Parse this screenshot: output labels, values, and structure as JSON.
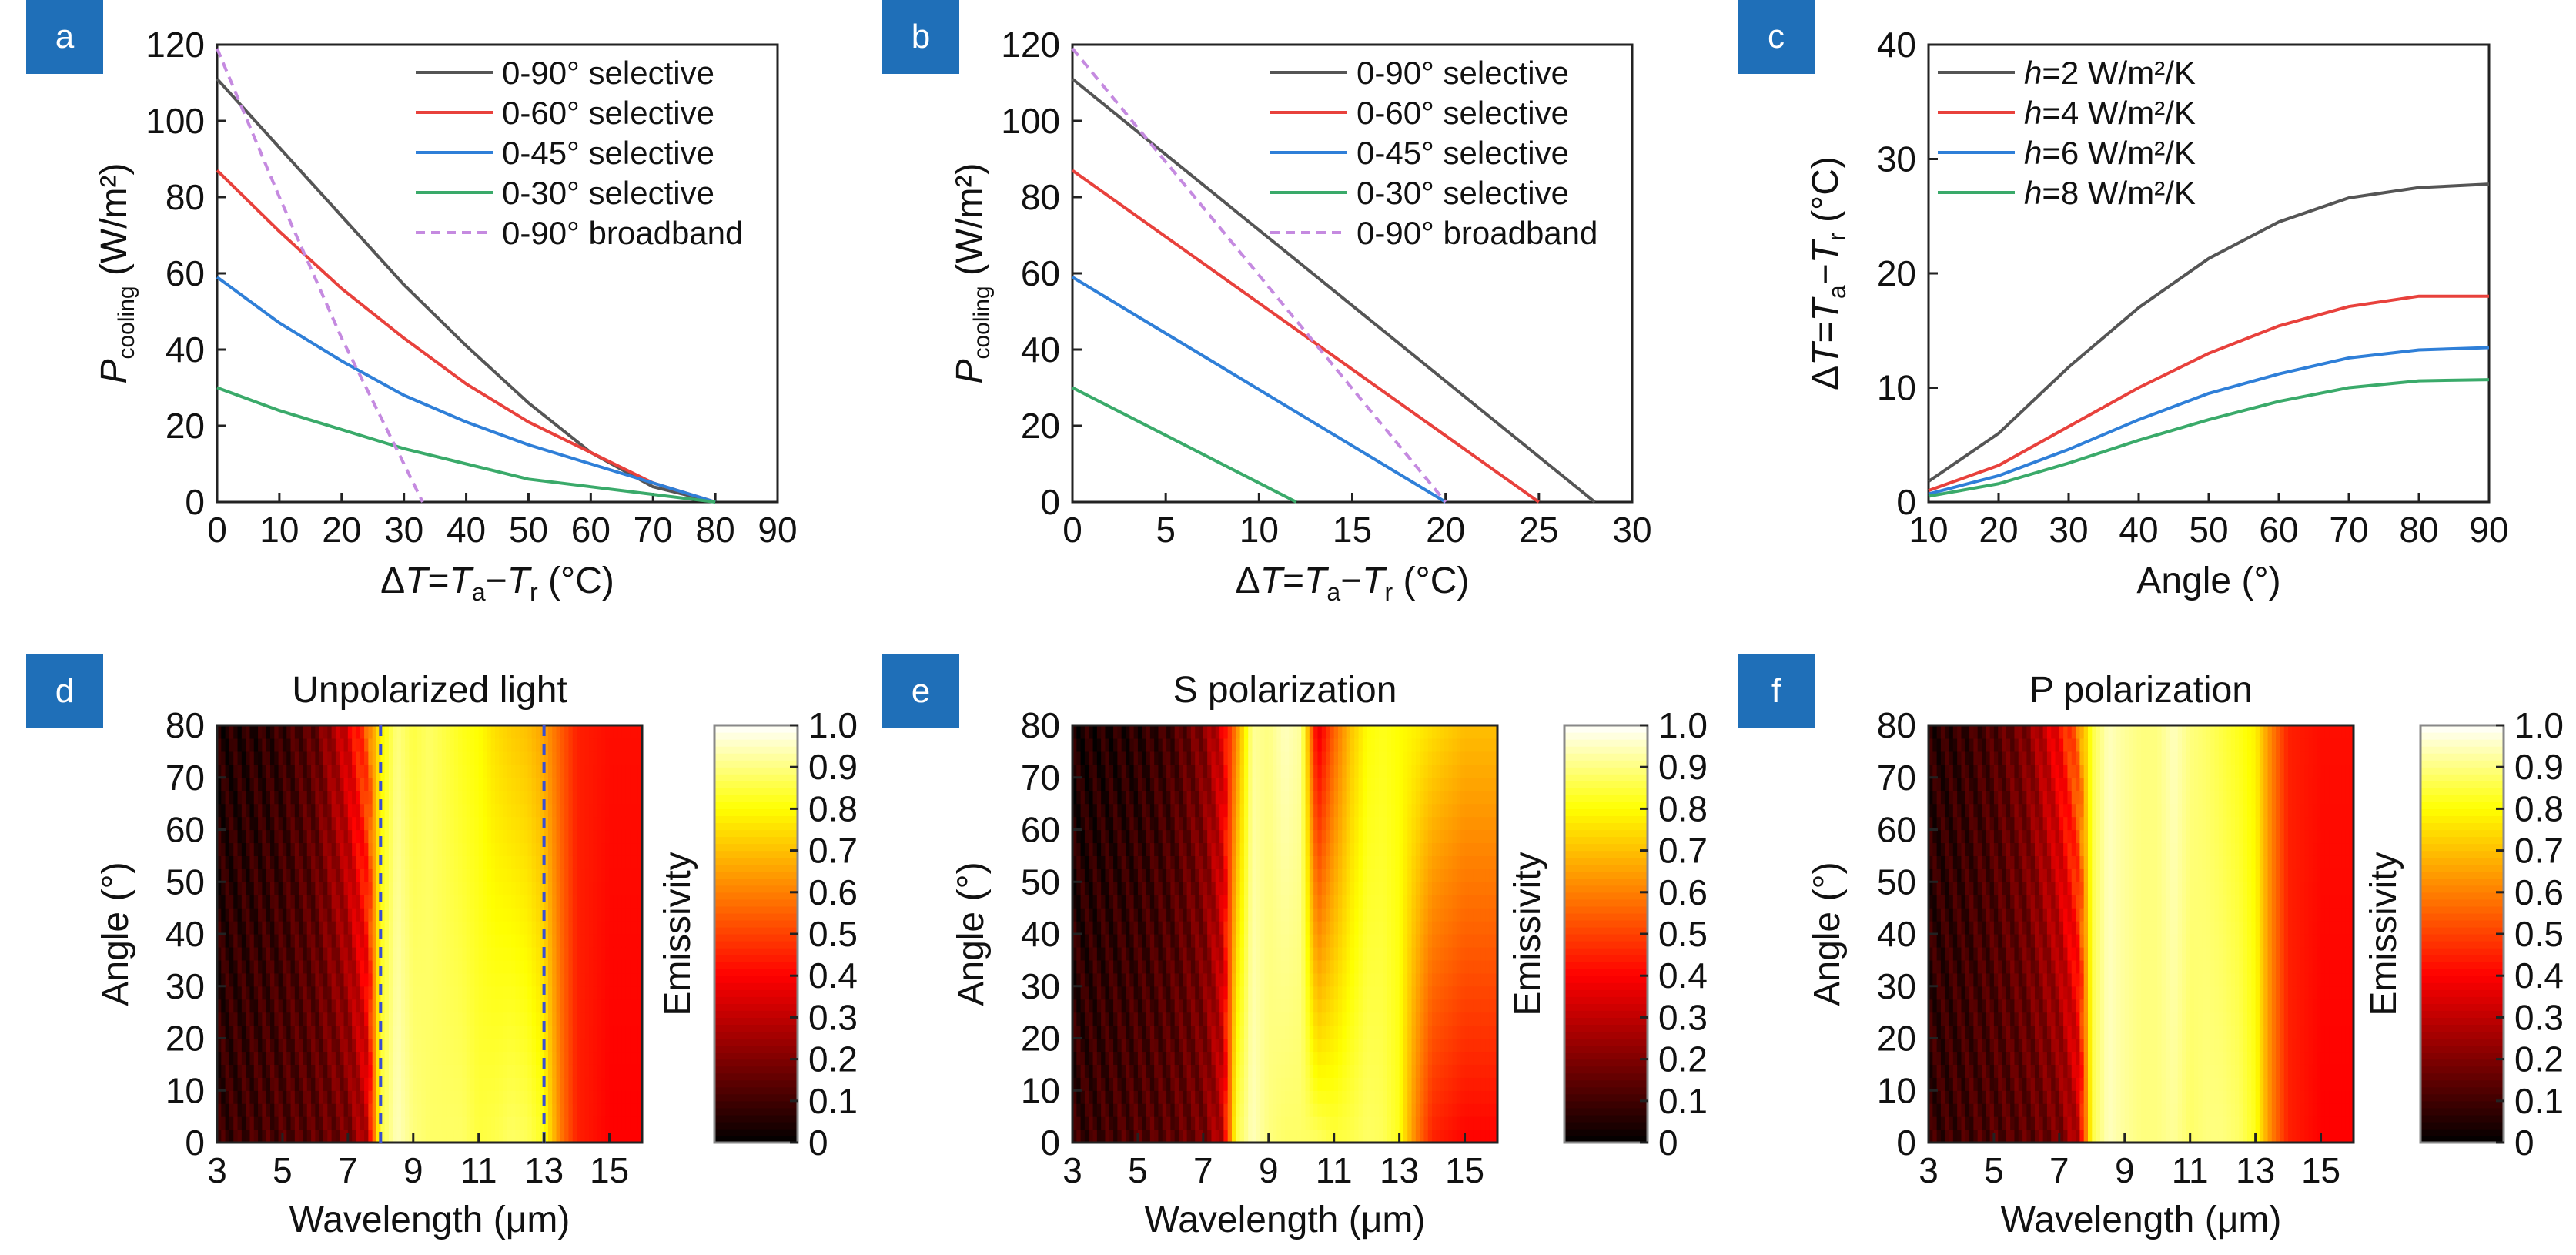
{
  "figure": {
    "panels": [
      {
        "id": "a",
        "label": "a",
        "ylabel_var": "P",
        "ylabel_sub": "cooling",
        "ylabel_unit": " (W/m²)",
        "xlabel": "ΔT=Ta−Tr (°C)"
      },
      {
        "id": "b",
        "label": "b",
        "ylabel_var": "P",
        "ylabel_sub": "cooling",
        "ylabel_unit": " (W/m²)",
        "xlabel": "ΔT=Ta−Tr (°C)"
      },
      {
        "id": "c",
        "label": "c",
        "ylabel": "ΔT=Ta−Tr (°C)",
        "xlabel": "Angle (°)"
      },
      {
        "id": "d",
        "label": "d",
        "title": "Unpolarized light",
        "ylabel": "Angle (°)",
        "xlabel": "Wavelength (μm)",
        "cbar_label": "Emissivity"
      },
      {
        "id": "e",
        "label": "e",
        "title": "S polarization",
        "ylabel": "Angle (°)",
        "xlabel": "Wavelength (μm)",
        "cbar_label": "Emissivity"
      },
      {
        "id": "f",
        "label": "f",
        "title": "P polarization",
        "ylabel": "Angle (°)",
        "xlabel": "Wavelength (μm)",
        "cbar_label": "Emissivity"
      }
    ],
    "colors": {
      "badge": "#1f6fb8",
      "gray": "#555555",
      "red": "#e8413c",
      "blue": "#2f7fd8",
      "green": "#3aaa6a",
      "purple": "#c58ae0"
    }
  },
  "chart_data": [
    {
      "type": "line",
      "panel": "a",
      "xlabel": "ΔT=Ta−Tr (°C)",
      "ylabel": "Pcooling (W/m²)",
      "xlim": [
        0,
        90
      ],
      "ylim": [
        0,
        120
      ],
      "xticks": [
        0,
        10,
        20,
        30,
        40,
        50,
        60,
        70,
        80,
        90
      ],
      "yticks": [
        0,
        20,
        40,
        60,
        80,
        100,
        120
      ],
      "legend_position": "top-right",
      "series": [
        {
          "name": "0-90° selective",
          "color": "#555555",
          "dash": false,
          "x": [
            0,
            10,
            20,
            30,
            40,
            50,
            60,
            70,
            80
          ],
          "y": [
            111,
            93,
            75,
            57,
            41,
            26,
            13,
            4,
            0
          ]
        },
        {
          "name": "0-60° selective",
          "color": "#e8413c",
          "dash": false,
          "x": [
            0,
            10,
            20,
            30,
            40,
            50,
            60,
            70,
            80
          ],
          "y": [
            87,
            71,
            56,
            43,
            31,
            21,
            13,
            5,
            0
          ]
        },
        {
          "name": "0-45° selective",
          "color": "#2f7fd8",
          "dash": false,
          "x": [
            0,
            10,
            20,
            30,
            40,
            50,
            60,
            70,
            80
          ],
          "y": [
            59,
            47,
            37,
            28,
            21,
            15,
            10,
            5,
            0
          ]
        },
        {
          "name": "0-30° selective",
          "color": "#3aaa6a",
          "dash": false,
          "x": [
            0,
            10,
            20,
            30,
            40,
            50,
            60,
            70,
            80
          ],
          "y": [
            30,
            24,
            19,
            14,
            10,
            6,
            4,
            2,
            0
          ]
        },
        {
          "name": "0-90° broadband",
          "color": "#c58ae0",
          "dash": true,
          "x": [
            0,
            10,
            20,
            30,
            33
          ],
          "y": [
            119,
            80,
            43,
            10,
            0
          ]
        }
      ]
    },
    {
      "type": "line",
      "panel": "b",
      "xlabel": "ΔT=Ta−Tr (°C)",
      "ylabel": "Pcooling (W/m²)",
      "xlim": [
        0,
        30
      ],
      "ylim": [
        0,
        120
      ],
      "xticks": [
        0,
        5,
        10,
        15,
        20,
        25,
        30
      ],
      "yticks": [
        0,
        20,
        40,
        60,
        80,
        100,
        120
      ],
      "legend_position": "top-right",
      "series": [
        {
          "name": "0-90° selective",
          "color": "#555555",
          "dash": false,
          "x": [
            0,
            28
          ],
          "y": [
            111,
            0
          ]
        },
        {
          "name": "0-60° selective",
          "color": "#e8413c",
          "dash": false,
          "x": [
            0,
            25
          ],
          "y": [
            87,
            0
          ]
        },
        {
          "name": "0-45° selective",
          "color": "#2f7fd8",
          "dash": false,
          "x": [
            0,
            20
          ],
          "y": [
            59,
            0
          ]
        },
        {
          "name": "0-30° selective",
          "color": "#3aaa6a",
          "dash": false,
          "x": [
            0,
            12
          ],
          "y": [
            30,
            0
          ]
        },
        {
          "name": "0-90° broadband",
          "color": "#c58ae0",
          "dash": true,
          "x": [
            0,
            20
          ],
          "y": [
            119,
            0
          ]
        }
      ]
    },
    {
      "type": "line",
      "panel": "c",
      "xlabel": "Angle (°)",
      "ylabel": "ΔT=Ta−Tr (°C)",
      "xlim": [
        10,
        90
      ],
      "ylim": [
        0,
        40
      ],
      "xticks": [
        10,
        20,
        30,
        40,
        50,
        60,
        70,
        80,
        90
      ],
      "yticks": [
        0,
        10,
        20,
        30,
        40
      ],
      "legend_position": "top-left",
      "series": [
        {
          "name": "h=2 W/m²/K",
          "legend_var": "h",
          "legend_rest": "=2 W/m²/K",
          "color": "#555555",
          "dash": false,
          "x": [
            10,
            20,
            30,
            40,
            50,
            60,
            70,
            80,
            90
          ],
          "y": [
            1.8,
            6,
            11.8,
            17,
            21.3,
            24.5,
            26.6,
            27.5,
            27.8
          ]
        },
        {
          "name": "h=4 W/m²/K",
          "legend_var": "h",
          "legend_rest": "=4 W/m²/K",
          "color": "#e8413c",
          "dash": false,
          "x": [
            10,
            20,
            30,
            40,
            50,
            60,
            70,
            80,
            90
          ],
          "y": [
            1,
            3.2,
            6.6,
            10,
            13,
            15.4,
            17.1,
            18,
            18
          ]
        },
        {
          "name": "h=6 W/m²/K",
          "legend_var": "h",
          "legend_rest": "=6 W/m²/K",
          "color": "#2f7fd8",
          "dash": false,
          "x": [
            10,
            20,
            30,
            40,
            50,
            60,
            70,
            80,
            90
          ],
          "y": [
            0.7,
            2.3,
            4.6,
            7.2,
            9.5,
            11.2,
            12.6,
            13.3,
            13.5
          ]
        },
        {
          "name": "h=8 W/m²/K",
          "legend_var": "h",
          "legend_rest": "=8 W/m²/K",
          "color": "#3aaa6a",
          "dash": false,
          "x": [
            10,
            20,
            30,
            40,
            50,
            60,
            70,
            80,
            90
          ],
          "y": [
            0.5,
            1.6,
            3.4,
            5.4,
            7.2,
            8.8,
            10,
            10.6,
            10.7
          ]
        }
      ]
    },
    {
      "type": "heatmap",
      "panel": "d",
      "title": "Unpolarized light",
      "xlabel": "Wavelength (μm)",
      "ylabel": "Angle (°)",
      "colorbar_label": "Emissivity",
      "xlim": [
        3,
        16
      ],
      "ylim": [
        0,
        80
      ],
      "xticks": [
        3,
        5,
        7,
        9,
        11,
        13,
        15
      ],
      "yticks": [
        0,
        10,
        20,
        30,
        40,
        50,
        60,
        70,
        80
      ],
      "colorbar_ticks": [
        "0",
        "0.1",
        "0.2",
        "0.3",
        "0.4",
        "0.5",
        "0.6",
        "0.7",
        "0.8",
        "0.9",
        "1.0"
      ],
      "colorbar_range": [
        0,
        1
      ],
      "dashed_lines_x": [
        8,
        13
      ],
      "wavelength": [
        3,
        4,
        5,
        6,
        7,
        7.6,
        8,
        8.5,
        9,
        9.5,
        10,
        10.5,
        11,
        11.5,
        12,
        12.5,
        13,
        13.5,
        14,
        15,
        16
      ],
      "emissivity_angle0": [
        0.08,
        0.1,
        0.12,
        0.14,
        0.18,
        0.3,
        0.85,
        0.95,
        0.9,
        0.88,
        0.88,
        0.88,
        0.85,
        0.86,
        0.88,
        0.87,
        0.82,
        0.6,
        0.45,
        0.4,
        0.4
      ],
      "emissivity_angle80": [
        0.05,
        0.06,
        0.08,
        0.15,
        0.35,
        0.55,
        0.78,
        0.9,
        0.85,
        0.88,
        0.85,
        0.82,
        0.8,
        0.75,
        0.72,
        0.7,
        0.65,
        0.55,
        0.45,
        0.42,
        0.42
      ]
    },
    {
      "type": "heatmap",
      "panel": "e",
      "title": "S polarization",
      "xlabel": "Wavelength (μm)",
      "ylabel": "Angle (°)",
      "colorbar_label": "Emissivity",
      "xlim": [
        3,
        16
      ],
      "ylim": [
        0,
        80
      ],
      "xticks": [
        3,
        5,
        7,
        9,
        11,
        13,
        15
      ],
      "yticks": [
        0,
        10,
        20,
        30,
        40,
        50,
        60,
        70,
        80
      ],
      "colorbar_ticks": [
        "0",
        "0.1",
        "0.2",
        "0.3",
        "0.4",
        "0.5",
        "0.6",
        "0.7",
        "0.8",
        "0.9",
        "1.0"
      ],
      "colorbar_range": [
        0,
        1
      ],
      "wavelength": [
        3,
        4,
        5,
        6,
        7,
        7.6,
        8,
        8.5,
        9,
        9.5,
        10,
        10.5,
        11,
        11.5,
        12,
        12.5,
        13,
        13.5,
        14,
        15,
        16
      ],
      "emissivity_angle0": [
        0.08,
        0.1,
        0.12,
        0.14,
        0.18,
        0.3,
        0.85,
        0.95,
        0.9,
        0.88,
        0.88,
        0.88,
        0.85,
        0.86,
        0.88,
        0.87,
        0.82,
        0.6,
        0.45,
        0.4,
        0.4
      ],
      "emissivity_angle80": [
        0.04,
        0.05,
        0.06,
        0.1,
        0.2,
        0.35,
        0.6,
        0.92,
        0.9,
        0.95,
        0.92,
        0.35,
        0.55,
        0.7,
        0.8,
        0.82,
        0.8,
        0.78,
        0.75,
        0.7,
        0.7
      ]
    },
    {
      "type": "heatmap",
      "panel": "f",
      "title": "P polarization",
      "xlabel": "Wavelength (μm)",
      "ylabel": "Angle (°)",
      "colorbar_label": "Emissivity",
      "xlim": [
        3,
        16
      ],
      "ylim": [
        0,
        80
      ],
      "xticks": [
        3,
        5,
        7,
        9,
        11,
        13,
        15
      ],
      "yticks": [
        0,
        10,
        20,
        30,
        40,
        50,
        60,
        70,
        80
      ],
      "colorbar_ticks": [
        "0",
        "0.1",
        "0.2",
        "0.3",
        "0.4",
        "0.5",
        "0.6",
        "0.7",
        "0.8",
        "0.9",
        "1.0"
      ],
      "colorbar_range": [
        0,
        1
      ],
      "wavelength": [
        3,
        4,
        5,
        6,
        7,
        7.6,
        8,
        8.5,
        9,
        9.5,
        10,
        10.5,
        11,
        11.5,
        12,
        12.5,
        13,
        13.5,
        14,
        15,
        16
      ],
      "emissivity_angle0": [
        0.08,
        0.1,
        0.12,
        0.14,
        0.18,
        0.3,
        0.85,
        0.95,
        0.92,
        0.9,
        0.9,
        0.92,
        0.88,
        0.9,
        0.9,
        0.88,
        0.82,
        0.6,
        0.45,
        0.4,
        0.4
      ],
      "emissivity_angle80": [
        0.06,
        0.08,
        0.12,
        0.2,
        0.4,
        0.6,
        0.85,
        0.95,
        0.92,
        0.9,
        0.9,
        0.95,
        0.9,
        0.88,
        0.85,
        0.82,
        0.78,
        0.6,
        0.45,
        0.42,
        0.42
      ]
    }
  ]
}
